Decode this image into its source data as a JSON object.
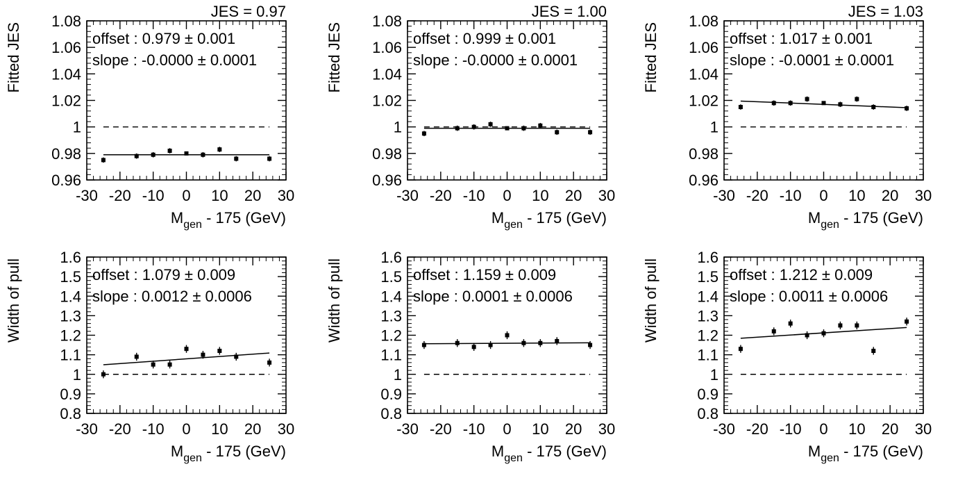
{
  "chart_data": [
    {
      "type": "scatter",
      "row": "top",
      "title": "JES = 0.97",
      "xlabel": "M_gen - 175 (GeV)",
      "xlabel_main": "M",
      "xlabel_sub": "gen",
      "xlabel_rest": " - 175 (GeV)",
      "ylabel": "Fitted JES",
      "xlim": [
        -30,
        30
      ],
      "ylim": [
        0.96,
        1.08
      ],
      "xticks": [
        "-30",
        "-20",
        "-10",
        "0",
        "10",
        "20",
        "30"
      ],
      "yticks": [
        "0.96",
        "0.98",
        "1",
        "1.02",
        "1.04",
        "1.06",
        "1.08"
      ],
      "annotations": [
        "offset : 0.979 ± 0.001",
        "slope : -0.0000 ± 0.0001"
      ],
      "reference_line": 1.0,
      "fit": {
        "offset": 0.979,
        "slope": 0.0
      },
      "x": [
        -25,
        -15,
        -10,
        -5,
        0,
        5,
        10,
        15,
        25
      ],
      "y": [
        0.975,
        0.978,
        0.979,
        0.982,
        0.98,
        0.979,
        0.983,
        0.976,
        0.976
      ],
      "yerr": [
        0.002,
        0.002,
        0.002,
        0.002,
        0.001,
        0.002,
        0.002,
        0.002,
        0.002
      ]
    },
    {
      "type": "scatter",
      "row": "top",
      "title": "JES = 1.00",
      "xlabel": "M_gen - 175 (GeV)",
      "xlabel_main": "M",
      "xlabel_sub": "gen",
      "xlabel_rest": " - 175 (GeV)",
      "ylabel": "Fitted JES",
      "xlim": [
        -30,
        30
      ],
      "ylim": [
        0.96,
        1.08
      ],
      "xticks": [
        "-30",
        "-20",
        "-10",
        "0",
        "10",
        "20",
        "30"
      ],
      "yticks": [
        "0.96",
        "0.98",
        "1",
        "1.02",
        "1.04",
        "1.06",
        "1.08"
      ],
      "annotations": [
        "offset : 0.999 ± 0.001",
        "slope : -0.0000 ± 0.0001"
      ],
      "reference_line": 1.0,
      "fit": {
        "offset": 0.999,
        "slope": 0.0
      },
      "x": [
        -25,
        -15,
        -10,
        -5,
        0,
        5,
        10,
        15,
        25
      ],
      "y": [
        0.995,
        0.999,
        1.0,
        1.002,
        0.999,
        0.999,
        1.001,
        0.996,
        0.996
      ],
      "yerr": [
        0.002,
        0.002,
        0.002,
        0.002,
        0.001,
        0.002,
        0.002,
        0.002,
        0.002
      ]
    },
    {
      "type": "scatter",
      "row": "top",
      "title": "JES = 1.03",
      "xlabel": "M_gen - 175 (GeV)",
      "xlabel_main": "M",
      "xlabel_sub": "gen",
      "xlabel_rest": " - 175 (GeV)",
      "ylabel": "Fitted JES",
      "xlim": [
        -30,
        30
      ],
      "ylim": [
        0.96,
        1.08
      ],
      "xticks": [
        "-30",
        "-20",
        "-10",
        "0",
        "10",
        "20",
        "30"
      ],
      "yticks": [
        "0.96",
        "0.98",
        "1",
        "1.02",
        "1.04",
        "1.06",
        "1.08"
      ],
      "annotations": [
        "offset : 1.017 ± 0.001",
        "slope : -0.0001 ± 0.0001"
      ],
      "reference_line": 1.0,
      "fit": {
        "offset": 1.017,
        "slope": -0.0001
      },
      "x": [
        -25,
        -15,
        -10,
        -5,
        0,
        5,
        10,
        15,
        25
      ],
      "y": [
        1.015,
        1.018,
        1.018,
        1.021,
        1.018,
        1.017,
        1.021,
        1.015,
        1.014
      ],
      "yerr": [
        0.002,
        0.002,
        0.002,
        0.002,
        0.001,
        0.002,
        0.002,
        0.002,
        0.002
      ]
    },
    {
      "type": "scatter",
      "row": "bottom",
      "title": "",
      "xlabel": "M_gen - 175 (GeV)",
      "xlabel_main": "M",
      "xlabel_sub": "gen",
      "xlabel_rest": " - 175 (GeV)",
      "ylabel": "Width of pull",
      "xlim": [
        -30,
        30
      ],
      "ylim": [
        0.8,
        1.6
      ],
      "xticks": [
        "-30",
        "-20",
        "-10",
        "0",
        "10",
        "20",
        "30"
      ],
      "yticks": [
        "0.8",
        "0.9",
        "1",
        "1.1",
        "1.2",
        "1.3",
        "1.4",
        "1.5",
        "1.6"
      ],
      "annotations": [
        "offset : 1.079 ± 0.009",
        "slope : 0.0012 ± 0.0006"
      ],
      "reference_line": 1.0,
      "fit": {
        "offset": 1.079,
        "slope": 0.0012
      },
      "x": [
        -25,
        -15,
        -10,
        -5,
        0,
        5,
        10,
        15,
        25
      ],
      "y": [
        1.0,
        1.09,
        1.05,
        1.05,
        1.13,
        1.1,
        1.12,
        1.09,
        1.06
      ],
      "yerr": [
        0.02,
        0.02,
        0.02,
        0.02,
        0.02,
        0.02,
        0.02,
        0.02,
        0.02
      ]
    },
    {
      "type": "scatter",
      "row": "bottom",
      "title": "",
      "xlabel": "M_gen - 175 (GeV)",
      "xlabel_main": "M",
      "xlabel_sub": "gen",
      "xlabel_rest": " - 175 (GeV)",
      "ylabel": "Width of pull",
      "xlim": [
        -30,
        30
      ],
      "ylim": [
        0.8,
        1.6
      ],
      "xticks": [
        "-30",
        "-20",
        "-10",
        "0",
        "10",
        "20",
        "30"
      ],
      "yticks": [
        "0.8",
        "0.9",
        "1",
        "1.1",
        "1.2",
        "1.3",
        "1.4",
        "1.5",
        "1.6"
      ],
      "annotations": [
        "offset : 1.159 ± 0.009",
        "slope : 0.0001 ± 0.0006"
      ],
      "reference_line": 1.0,
      "fit": {
        "offset": 1.159,
        "slope": 0.0001
      },
      "x": [
        -25,
        -15,
        -10,
        -5,
        0,
        5,
        10,
        15,
        25
      ],
      "y": [
        1.15,
        1.16,
        1.14,
        1.15,
        1.2,
        1.16,
        1.16,
        1.17,
        1.15
      ],
      "yerr": [
        0.02,
        0.02,
        0.02,
        0.02,
        0.02,
        0.02,
        0.02,
        0.02,
        0.02
      ]
    },
    {
      "type": "scatter",
      "row": "bottom",
      "title": "",
      "xlabel": "M_gen - 175 (GeV)",
      "xlabel_main": "M",
      "xlabel_sub": "gen",
      "xlabel_rest": " - 175 (GeV)",
      "ylabel": "Width of pull",
      "xlim": [
        -30,
        30
      ],
      "ylim": [
        0.8,
        1.6
      ],
      "xticks": [
        "-30",
        "-20",
        "-10",
        "0",
        "10",
        "20",
        "30"
      ],
      "yticks": [
        "0.8",
        "0.9",
        "1",
        "1.1",
        "1.2",
        "1.3",
        "1.4",
        "1.5",
        "1.6"
      ],
      "annotations": [
        "offset : 1.212 ± 0.009",
        "slope : 0.0011 ± 0.0006"
      ],
      "reference_line": 1.0,
      "fit": {
        "offset": 1.212,
        "slope": 0.0011
      },
      "x": [
        -25,
        -15,
        -10,
        -5,
        0,
        5,
        10,
        15,
        25
      ],
      "y": [
        1.13,
        1.22,
        1.26,
        1.2,
        1.21,
        1.25,
        1.25,
        1.12,
        1.27
      ],
      "yerr": [
        0.02,
        0.02,
        0.02,
        0.02,
        0.02,
        0.02,
        0.02,
        0.02,
        0.02
      ]
    }
  ]
}
